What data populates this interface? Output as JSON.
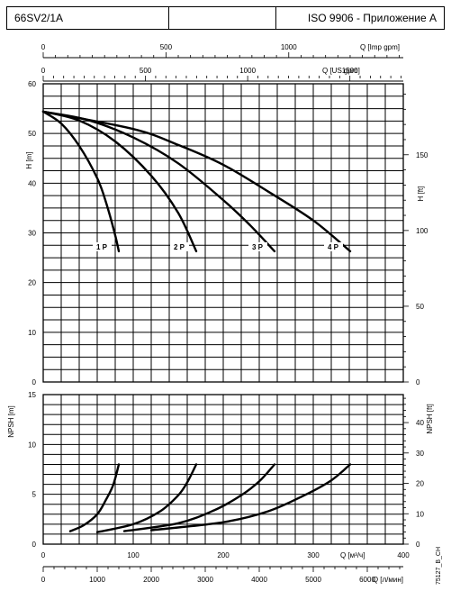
{
  "header": {
    "model": "66SV2/1A",
    "empty": "",
    "standard": "ISO 9906 - Приложение A"
  },
  "doc_code": "75127_B_CH",
  "chart_data": [
    {
      "type": "line",
      "title": "",
      "series": [
        {
          "name": "1 P",
          "x": [
            0,
            20,
            40,
            60,
            70,
            80,
            84
          ],
          "y": [
            54.4,
            52.0,
            47.5,
            41.0,
            36.0,
            29.5,
            26.3
          ]
        },
        {
          "name": "2 P",
          "x": [
            0,
            40,
            80,
            120,
            150,
            170
          ],
          "y": [
            54.4,
            52.6,
            48.4,
            41.5,
            34.0,
            26.3
          ]
        },
        {
          "name": "3 P",
          "x": [
            0,
            50,
            100,
            150,
            200,
            230,
            257
          ],
          "y": [
            54.4,
            52.7,
            49.2,
            44.0,
            36.6,
            31.5,
            26.3
          ]
        },
        {
          "name": "4 P",
          "x": [
            0,
            100,
            150,
            200,
            250,
            300,
            341
          ],
          "y": [
            54.4,
            50.9,
            47.7,
            43.7,
            38.3,
            32.5,
            26.3
          ]
        }
      ],
      "ylabel_left": "H [m]",
      "ylabel_right": "H [ft]",
      "ylim": [
        0,
        60
      ],
      "yticks_left": [
        "0",
        "10",
        "20",
        "30",
        "40",
        "50",
        "60"
      ],
      "yticks_right": [
        "0",
        "50",
        "100",
        "150"
      ],
      "xlim": [
        0,
        400
      ],
      "top_axis_1": {
        "label": "Q [Imp gpm]",
        "ticks": [
          "0",
          "500",
          "1000"
        ]
      },
      "top_axis_2": {
        "label": "Q [US gpm]",
        "ticks": [
          "0",
          "500",
          "1000",
          "1500"
        ]
      }
    },
    {
      "type": "line",
      "title": "",
      "series": [
        {
          "name": "1 P",
          "x": [
            30,
            45,
            60,
            70,
            78,
            84
          ],
          "y": [
            1.3,
            1.9,
            3.0,
            4.5,
            6.0,
            8.0
          ]
        },
        {
          "name": "2 P",
          "x": [
            60,
            100,
            130,
            150,
            160,
            170
          ],
          "y": [
            1.2,
            2.0,
            3.3,
            4.9,
            6.2,
            8.0
          ]
        },
        {
          "name": "3 P",
          "x": [
            90,
            150,
            190,
            220,
            240,
            257
          ],
          "y": [
            1.3,
            2.1,
            3.4,
            4.9,
            6.3,
            8.0
          ]
        },
        {
          "name": "4 P",
          "x": [
            120,
            200,
            250,
            290,
            320,
            341
          ],
          "y": [
            1.4,
            2.2,
            3.3,
            4.9,
            6.4,
            8.0
          ]
        }
      ],
      "ylabel_left": "NPSH [m]",
      "ylabel_right": "NPSH [ft]",
      "ylim": [
        0,
        15
      ],
      "yticks_left": [
        "0",
        "5",
        "10",
        "15"
      ],
      "yticks_right": [
        "0",
        "10",
        "20",
        "30",
        "40"
      ],
      "xlim": [
        0,
        400
      ],
      "xlabel": "Q [м³/ч]",
      "xticks": [
        "0",
        "100",
        "200",
        "300",
        "400"
      ],
      "bottom_axis_2": {
        "label": "Q [л/мин]",
        "ticks": [
          "0",
          "1000",
          "2000",
          "3000",
          "4000",
          "5000",
          "6000"
        ]
      }
    }
  ]
}
